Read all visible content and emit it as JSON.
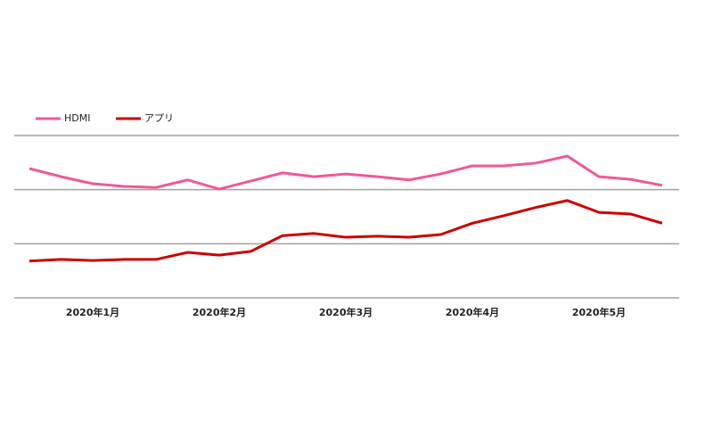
{
  "chart_data": {
    "type": "line",
    "categories": [
      null,
      null,
      "2020年1月",
      null,
      null,
      null,
      "2020年2月",
      null,
      null,
      null,
      "2020年3月",
      null,
      null,
      null,
      "2020年4月",
      null,
      null,
      null,
      "2020年5月",
      null,
      null
    ],
    "series": [
      {
        "name": "HDMI",
        "color": "#f0589a",
        "values": [
          2.39,
          2.24,
          2.11,
          2.06,
          2.04,
          2.18,
          2.01,
          2.16,
          2.31,
          2.24,
          2.29,
          2.24,
          2.18,
          2.29,
          2.44,
          2.44,
          2.49,
          2.62,
          2.24,
          2.19,
          2.08
        ]
      },
      {
        "name": "アプリ",
        "color": "#cc0000",
        "values": [
          0.68,
          0.71,
          0.69,
          0.71,
          0.71,
          0.84,
          0.79,
          0.86,
          1.15,
          1.19,
          1.12,
          1.14,
          1.12,
          1.17,
          1.38,
          1.52,
          1.67,
          1.8,
          1.58,
          1.55,
          1.38
        ]
      }
    ],
    "ylim": [
      0,
      3
    ],
    "yticks": [
      0,
      1,
      2,
      3
    ],
    "grid": true,
    "legend": "top-left"
  }
}
